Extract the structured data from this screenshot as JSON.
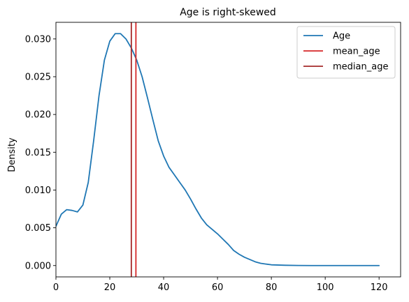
{
  "chart_data": {
    "type": "line",
    "title": "Age is right-skewed",
    "xlabel": "",
    "ylabel": "Density",
    "xlim": [
      0,
      128
    ],
    "ylim": [
      -0.0015,
      0.0322
    ],
    "x_ticks": [
      0,
      20,
      40,
      60,
      80,
      100,
      120
    ],
    "y_ticks": [
      0.0,
      0.005,
      0.01,
      0.015,
      0.02,
      0.025,
      0.03
    ],
    "y_tick_labels": [
      "0.000",
      "0.005",
      "0.010",
      "0.015",
      "0.020",
      "0.025",
      "0.030"
    ],
    "grid": false,
    "legend_position": "top-right",
    "series": [
      {
        "name": "Age",
        "color": "#1f77b4",
        "x": [
          0,
          2,
          4,
          6,
          8,
          10,
          12,
          14,
          16,
          18,
          20,
          22,
          24,
          26,
          28,
          30,
          32,
          34,
          36,
          38,
          40,
          42,
          44,
          46,
          48,
          50,
          52,
          54,
          56,
          58,
          60,
          62,
          64,
          66,
          68,
          70,
          72,
          74,
          76,
          78,
          80,
          85,
          90,
          95,
          100,
          110,
          120
        ],
        "y": [
          0.0052,
          0.0068,
          0.0074,
          0.0073,
          0.0071,
          0.008,
          0.011,
          0.0165,
          0.0225,
          0.0272,
          0.0297,
          0.0307,
          0.0307,
          0.03,
          0.0288,
          0.0272,
          0.025,
          0.0222,
          0.0193,
          0.0165,
          0.0145,
          0.013,
          0.012,
          0.011,
          0.01,
          0.0088,
          0.0075,
          0.0063,
          0.0054,
          0.0048,
          0.0042,
          0.0035,
          0.0028,
          0.002,
          0.0015,
          0.0011,
          0.0008,
          0.0005,
          0.0003,
          0.0002,
          0.0001,
          4e-05,
          1e-05,
          0.0,
          0.0,
          0.0,
          0.0
        ]
      },
      {
        "name": "mean_age",
        "color": "#d62728",
        "kind": "vline",
        "x": 29.7
      },
      {
        "name": "median_age",
        "color": "#a52a2a",
        "kind": "vline",
        "x": 28.0
      }
    ]
  }
}
